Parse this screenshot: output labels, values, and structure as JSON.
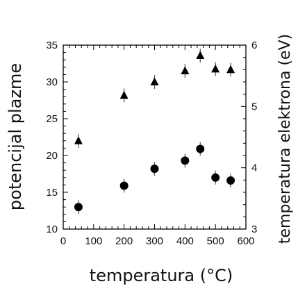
{
  "chart_data": {
    "type": "scatter",
    "title": "",
    "xlabel": "temperatura (°C)",
    "ylabel_left": "potencijal plazme",
    "ylabel_right": "temperatura elektrona (eV)",
    "xlim": [
      0,
      600
    ],
    "ylim_left": [
      10,
      35
    ],
    "ylim_right": [
      3,
      6
    ],
    "x_ticks": [
      0,
      100,
      200,
      300,
      400,
      500,
      600
    ],
    "y_ticks_left": [
      10,
      15,
      20,
      25,
      30,
      35
    ],
    "y_ticks_right": [
      3,
      4,
      5,
      6
    ],
    "grid": false,
    "legend": "none",
    "series": [
      {
        "marker": "circle",
        "axis": "left",
        "x": [
          50,
          200,
          300,
          400,
          450,
          500,
          550
        ],
        "y": [
          13.0,
          15.9,
          18.2,
          19.3,
          20.9,
          17.0,
          16.6
        ]
      },
      {
        "marker": "triangle",
        "axis": "right",
        "x": [
          50,
          200,
          300,
          400,
          450,
          500,
          550
        ],
        "y": [
          4.44,
          5.18,
          5.4,
          5.58,
          5.83,
          5.61,
          5.6
        ]
      }
    ],
    "colors": {
      "marker": "#000000",
      "axis": "#000000",
      "error_bar": "#555555"
    }
  }
}
